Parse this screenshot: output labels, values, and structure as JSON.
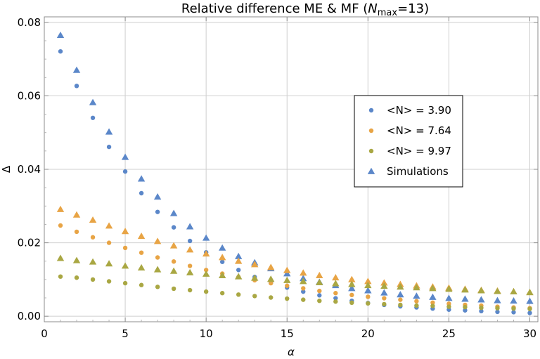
{
  "chart_data": {
    "type": "scatter",
    "title": {
      "prefix": "Relative difference ME & MF (",
      "var": "N",
      "sub": "max",
      "suffix": "=13)"
    },
    "xlabel": "α",
    "ylabel": "Δ",
    "xlim": [
      0,
      30.5
    ],
    "ylim": [
      -0.0015,
      0.0815
    ],
    "xticks": [
      0,
      5,
      10,
      15,
      20,
      25,
      30
    ],
    "yticks": [
      0.0,
      0.02,
      0.04,
      0.06,
      0.08
    ],
    "ytick_labels": [
      "0.00",
      "0.02",
      "0.04",
      "0.06",
      "0.08"
    ],
    "grid": true,
    "legend_position": "center-right",
    "x": [
      1,
      2,
      3,
      4,
      5,
      6,
      7,
      8,
      9,
      10,
      11,
      12,
      13,
      14,
      15,
      16,
      17,
      18,
      19,
      20,
      21,
      22,
      23,
      24,
      25,
      26,
      27,
      28,
      29,
      30
    ],
    "series": [
      {
        "name": "<N> = 3.90",
        "marker": "circle",
        "color": "#5b87c9",
        "values": [
          0.0721,
          0.0627,
          0.054,
          0.0461,
          0.0394,
          0.0335,
          0.0284,
          0.0242,
          0.0205,
          0.0174,
          0.0148,
          0.0126,
          0.0107,
          0.0091,
          0.0078,
          0.0067,
          0.0057,
          0.0049,
          0.0042,
          0.0036,
          0.0031,
          0.0027,
          0.0024,
          0.0021,
          0.0018,
          0.0016,
          0.0014,
          0.0012,
          0.0011,
          0.0009
        ]
      },
      {
        "name": "<N> = 7.64",
        "marker": "circle",
        "color": "#e8a445",
        "values": [
          0.0247,
          0.023,
          0.0215,
          0.02,
          0.0186,
          0.0173,
          0.016,
          0.0149,
          0.0137,
          0.0126,
          0.0116,
          0.0107,
          0.0098,
          0.009,
          0.0083,
          0.0076,
          0.0069,
          0.0063,
          0.0058,
          0.0053,
          0.0049,
          0.0045,
          0.0041,
          0.0037,
          0.0034,
          0.0031,
          0.0029,
          0.0026,
          0.0024,
          0.0022
        ]
      },
      {
        "name": "<N> = 9.97",
        "marker": "circle",
        "color": "#a9a743",
        "values": [
          0.0108,
          0.0105,
          0.01,
          0.0095,
          0.009,
          0.0085,
          0.008,
          0.0075,
          0.0071,
          0.0067,
          0.0063,
          0.0059,
          0.0055,
          0.0051,
          0.0048,
          0.0045,
          0.0042,
          0.004,
          0.0037,
          0.0035,
          0.0033,
          0.0031,
          0.0029,
          0.0028,
          0.0026,
          0.0025,
          0.0023,
          0.0022,
          0.0021,
          0.002
        ]
      },
      {
        "name": "Simulations",
        "marker": "triangle",
        "color": "#5b87c9",
        "values": [
          0.0765,
          0.067,
          0.0582,
          0.0502,
          0.0433,
          0.0374,
          0.0325,
          0.028,
          0.0244,
          0.0213,
          0.0186,
          0.0163,
          0.0146,
          0.013,
          0.0116,
          0.0103,
          0.0093,
          0.0084,
          0.0076,
          0.007,
          0.0064,
          0.0059,
          0.0055,
          0.0052,
          0.0049,
          0.0047,
          0.0045,
          0.0043,
          0.0042,
          0.0041
        ]
      }
    ],
    "simulation_groups": [
      {
        "color": "#e8a445",
        "values": [
          0.0291,
          0.0276,
          0.0262,
          0.0246,
          0.0231,
          0.0218,
          0.0204,
          0.0192,
          0.0181,
          0.017,
          0.016,
          0.015,
          0.0141,
          0.0133,
          0.0125,
          0.0118,
          0.0111,
          0.0105,
          0.01,
          0.0095,
          0.0091,
          0.0087,
          0.0083,
          0.008,
          0.0077,
          0.0074,
          0.0071,
          0.0069,
          0.0067,
          0.0065
        ]
      },
      {
        "color": "#a9a743",
        "values": [
          0.0158,
          0.0152,
          0.0148,
          0.0143,
          0.0137,
          0.0132,
          0.0127,
          0.0123,
          0.0119,
          0.0115,
          0.0111,
          0.0108,
          0.0104,
          0.0101,
          0.0098,
          0.0095,
          0.0092,
          0.0089,
          0.0087,
          0.0084,
          0.0082,
          0.008,
          0.0078,
          0.0076,
          0.0074,
          0.0072,
          0.007,
          0.0068,
          0.0067,
          0.0065
        ]
      }
    ]
  }
}
